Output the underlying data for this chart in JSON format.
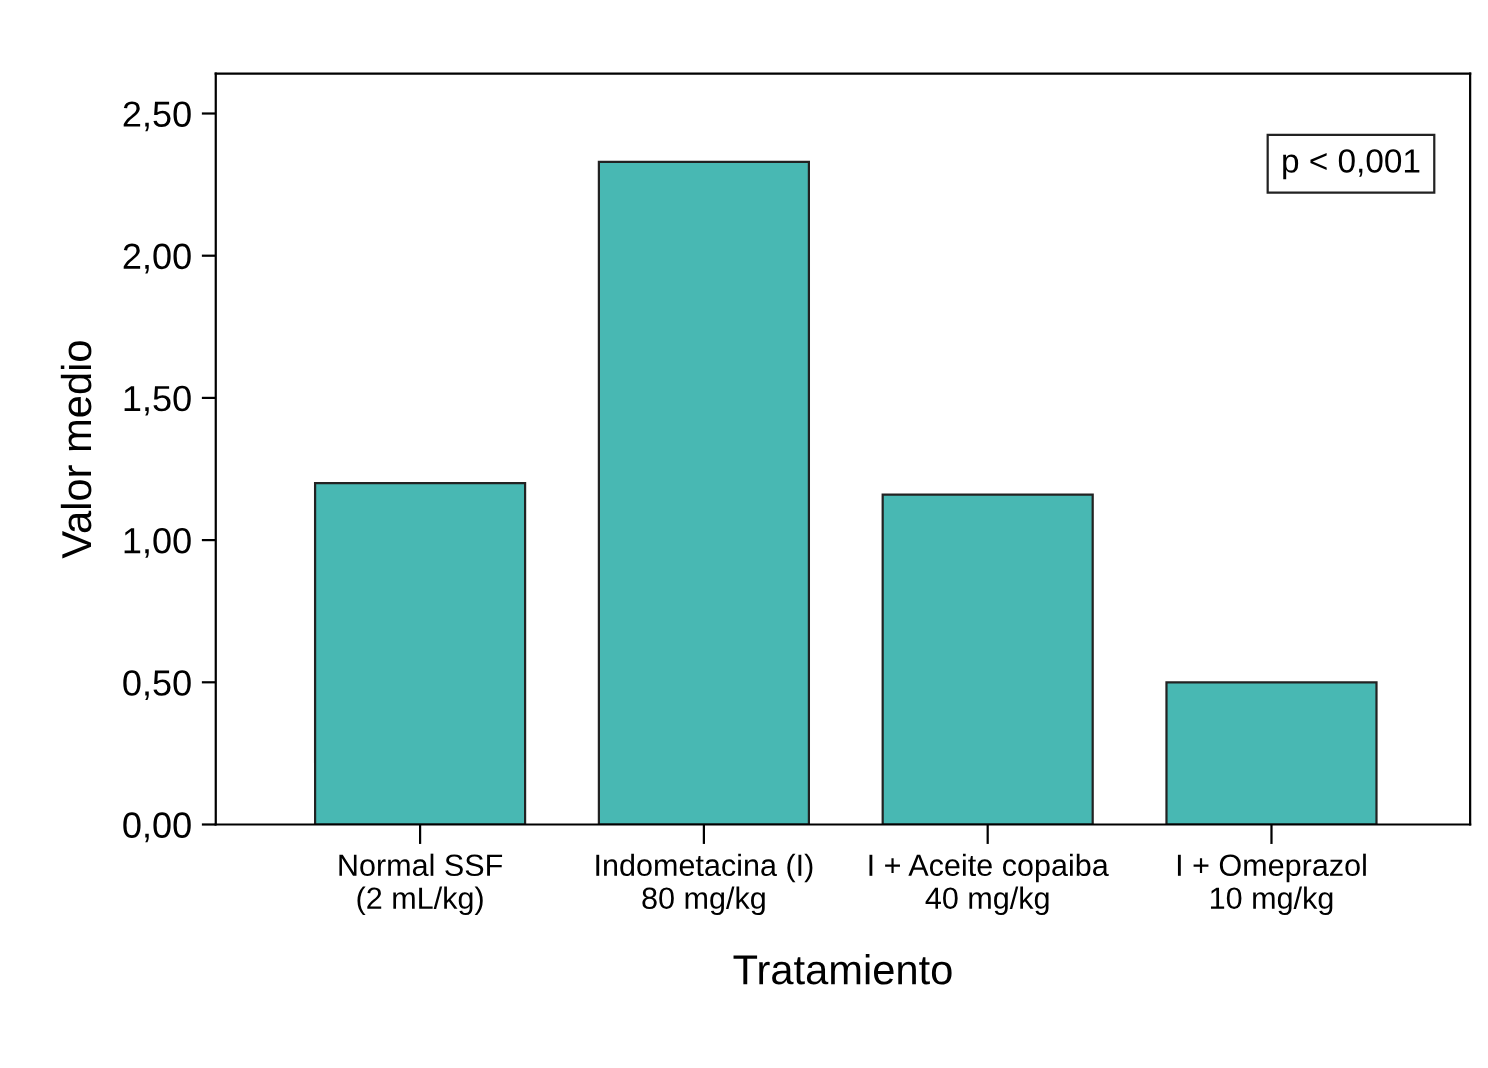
{
  "chart_data": {
    "type": "bar",
    "xlabel": "Tratamiento",
    "ylabel": "Valor medio",
    "categories": [
      "Normal SSF\n(2 mL/kg)",
      "Indometacina (I)\n80 mg/kg",
      "I + Aceite copaiba\n40 mg/kg",
      "I + Omeprazol\n10 mg/kg"
    ],
    "values": [
      1.2,
      2.33,
      1.16,
      0.5
    ],
    "color": "#48b8b3",
    "ylim": [
      0,
      2.64
    ],
    "yticks": [
      {
        "value": 0,
        "label": "0,00"
      },
      {
        "value": 0.5,
        "label": "0,50"
      },
      {
        "value": 1.0,
        "label": "1,00"
      },
      {
        "value": 1.5,
        "label": "1,50"
      },
      {
        "value": 2.0,
        "label": "2,00"
      },
      {
        "value": 2.5,
        "label": "2,50"
      }
    ],
    "grid": false,
    "annotations": [
      "p < 0,001"
    ]
  }
}
